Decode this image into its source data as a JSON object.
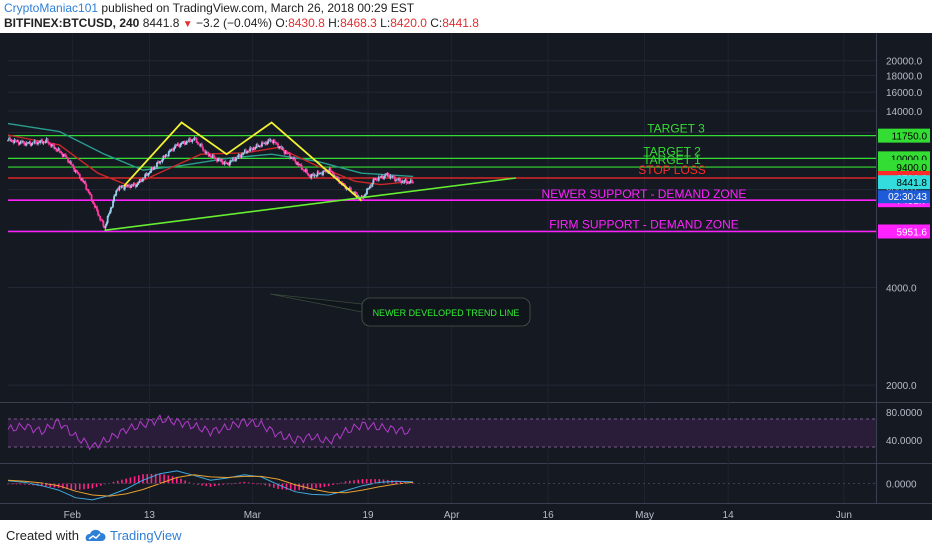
{
  "header": {
    "author": "CryptoManiac101",
    "published_text": "published on TradingView.com, March 26, 2018 00:29 EST",
    "symbol": "BITFINEX:BTCUSD, 240",
    "last": "8441.8",
    "change": "−3.2 (−0.04%)",
    "o_label": "O:",
    "o": "8430.8",
    "h_label": "H:",
    "h": "8468.3",
    "l_label": "L:",
    "l": "8420.0",
    "c_label": "C:",
    "c": "8441.8"
  },
  "footer": {
    "created_with": "Created with",
    "brand": "TradingView"
  },
  "colors": {
    "background": "#151922",
    "target": "#33dd33",
    "stop_loss": "#ff2a2a",
    "support": "#ff22ff",
    "trendline": "#66ee33",
    "pattern": "#f2f230",
    "candle_up": "#9ad0ec",
    "candle_down": "#ff3aa0",
    "ma_fast": "#c82828",
    "ma_slow": "#2a9d8f",
    "rsi": "#b03cc8",
    "macd": "#3fa9e0",
    "signal": "#e8a030",
    "histogram": "#ff2288",
    "price_tag": "#33dddd",
    "time_tag": "#1e5bd8"
  },
  "chart_data": {
    "type": "candlestick",
    "price_scale": "log",
    "ylim": [
      1800,
      23000
    ],
    "x_ticks": [
      "Feb",
      "13",
      "Mar",
      "19",
      "Apr",
      "16",
      "May",
      "14",
      "Jun"
    ],
    "y_ticks": [
      "20000.0",
      "18000.0",
      "16000.0",
      "14000.0",
      "12000.0",
      "10000.0",
      "8000.0",
      "6000.0",
      "4000.0",
      "2000.0"
    ],
    "price_path": [
      {
        "d": "2018-01-22",
        "p": 11400
      },
      {
        "d": "2018-01-25",
        "p": 11100
      },
      {
        "d": "2018-01-28",
        "p": 11300
      },
      {
        "d": "2018-01-31",
        "p": 10100
      },
      {
        "d": "2018-02-03",
        "p": 8300
      },
      {
        "d": "2018-02-06",
        "p": 6100
      },
      {
        "d": "2018-02-08",
        "p": 8100
      },
      {
        "d": "2018-02-11",
        "p": 8300
      },
      {
        "d": "2018-02-14",
        "p": 9500
      },
      {
        "d": "2018-02-17",
        "p": 10900
      },
      {
        "d": "2018-02-20",
        "p": 11500
      },
      {
        "d": "2018-02-22",
        "p": 10300
      },
      {
        "d": "2018-02-25",
        "p": 9600
      },
      {
        "d": "2018-02-28",
        "p": 10500
      },
      {
        "d": "2018-03-04",
        "p": 11400
      },
      {
        "d": "2018-03-07",
        "p": 10100
      },
      {
        "d": "2018-03-10",
        "p": 8800
      },
      {
        "d": "2018-03-13",
        "p": 9200
      },
      {
        "d": "2018-03-15",
        "p": 8300
      },
      {
        "d": "2018-03-18",
        "p": 7500
      },
      {
        "d": "2018-03-20",
        "p": 8600
      },
      {
        "d": "2018-03-22",
        "p": 8900
      },
      {
        "d": "2018-03-24",
        "p": 8500
      },
      {
        "d": "2018-03-26",
        "p": 8441.8
      }
    ],
    "ma_fast": [
      {
        "d": "2018-01-22",
        "p": 11800
      },
      {
        "d": "2018-01-30",
        "p": 11000
      },
      {
        "d": "2018-02-05",
        "p": 9000
      },
      {
        "d": "2018-02-10",
        "p": 8200
      },
      {
        "d": "2018-02-16",
        "p": 9300
      },
      {
        "d": "2018-02-21",
        "p": 10300
      },
      {
        "d": "2018-02-28",
        "p": 10400
      },
      {
        "d": "2018-03-05",
        "p": 10800
      },
      {
        "d": "2018-03-11",
        "p": 9500
      },
      {
        "d": "2018-03-17",
        "p": 8500
      },
      {
        "d": "2018-03-21",
        "p": 8300
      },
      {
        "d": "2018-03-26",
        "p": 8500
      }
    ],
    "ma_slow": [
      {
        "d": "2018-01-22",
        "p": 12800
      },
      {
        "d": "2018-01-30",
        "p": 12100
      },
      {
        "d": "2018-02-06",
        "p": 10300
      },
      {
        "d": "2018-02-12",
        "p": 9200
      },
      {
        "d": "2018-02-18",
        "p": 9500
      },
      {
        "d": "2018-02-25",
        "p": 10000
      },
      {
        "d": "2018-03-04",
        "p": 10300
      },
      {
        "d": "2018-03-11",
        "p": 9800
      },
      {
        "d": "2018-03-18",
        "p": 9000
      },
      {
        "d": "2018-03-26",
        "p": 8800
      }
    ],
    "levels": [
      {
        "name": "target3",
        "label": "TARGET 3",
        "value": 11750,
        "tag": "11750.0",
        "color_key": "target"
      },
      {
        "name": "target2",
        "label": "TARGET 2",
        "value": 10000,
        "tag": "10000.0",
        "color_key": "target"
      },
      {
        "name": "target1",
        "label": "TARGET 1",
        "value": 9400,
        "tag": "9400.0",
        "color_key": "target"
      },
      {
        "name": "stop-loss",
        "label": "STOP LOSS",
        "value": 8700,
        "tag": "8700.0",
        "color_key": "stop_loss"
      },
      {
        "name": "newer-support",
        "label": "NEWER SUPPORT - DEMAND ZONE",
        "value": 7431.7,
        "tag": "7431.7",
        "color_key": "support"
      },
      {
        "name": "firm-support",
        "label": "FIRM SUPPORT - DEMAND ZONE",
        "value": 5951.6,
        "tag": "5951.6",
        "color_key": "support"
      }
    ],
    "current_price_tag": "8441.8",
    "countdown_tag": "02:30:43",
    "double_top": [
      {
        "d": "2018-02-09",
        "p": 8200
      },
      {
        "d": "2018-02-18",
        "p": 12900
      },
      {
        "d": "2018-02-25",
        "p": 10300
      },
      {
        "d": "2018-03-04",
        "p": 12900
      },
      {
        "d": "2018-03-18",
        "p": 7400
      }
    ],
    "trendline": {
      "start": {
        "d": "2018-02-06",
        "p": 6000
      },
      "end": {
        "d": "2018-04-11",
        "p": 8700
      },
      "label": "NEWER DEVELOPED TREND LINE"
    },
    "rsi": {
      "y_ticks": [
        "80.0000",
        "40.0000"
      ],
      "upper": 70,
      "lower": 30,
      "values": [
        55,
        60,
        52,
        66,
        45,
        30,
        42,
        55,
        62,
        70,
        66,
        60,
        52,
        58,
        66,
        62,
        48,
        40,
        45,
        38,
        52,
        62,
        58,
        55,
        50
      ]
    },
    "macd": {
      "y_ticks": [
        "0.0000"
      ],
      "macd": [
        50,
        20,
        -40,
        -120,
        -260,
        -300,
        -220,
        -100,
        60,
        180,
        230,
        150,
        60,
        100,
        160,
        120,
        -20,
        -150,
        -200,
        -210,
        -130,
        -40,
        20,
        40,
        30
      ],
      "signal": [
        60,
        40,
        10,
        -40,
        -140,
        -210,
        -230,
        -190,
        -110,
        0,
        110,
        160,
        120,
        110,
        130,
        130,
        80,
        -20,
        -100,
        -160,
        -170,
        -120,
        -60,
        -10,
        20
      ]
    }
  }
}
